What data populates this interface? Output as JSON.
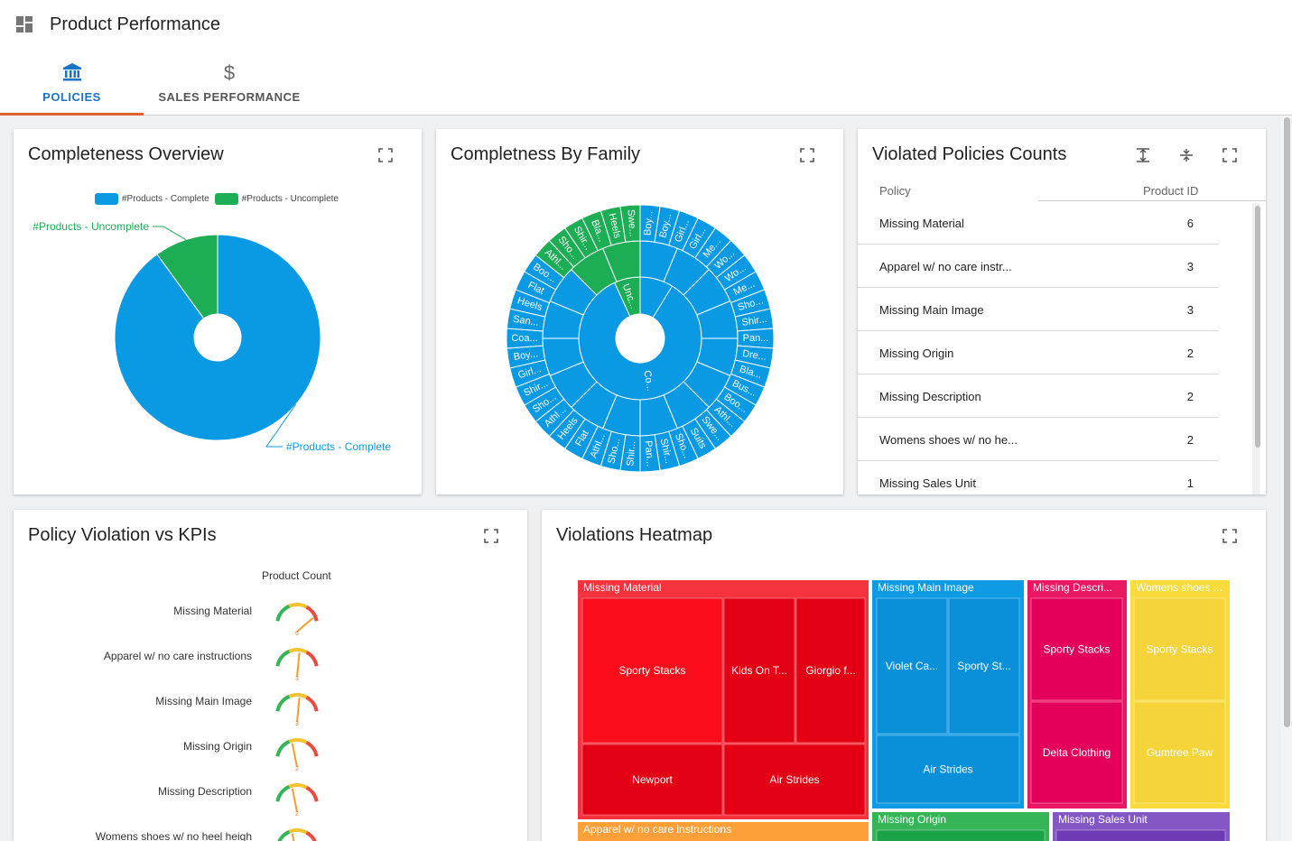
{
  "app": {
    "title": "Product Performance",
    "icon": "dashboard-icon"
  },
  "tabs": [
    {
      "label": "POLICIES",
      "icon": "bank-icon",
      "active": true
    },
    {
      "label": "SALES PERFORMANCE",
      "icon": "dollar-icon",
      "active": false
    }
  ],
  "completeness": {
    "title": "Completeness Overview",
    "chart_data": {
      "type": "pie",
      "labels": [
        "#Products - Complete",
        "#Products - Uncomplete"
      ],
      "values": [
        90,
        10
      ],
      "colors": [
        "#0a9ae3",
        "#1cad55"
      ],
      "legend_position": "top"
    }
  },
  "family": {
    "title": "Completness By Family",
    "inner_labels": [
      "Unc...",
      "Co..."
    ],
    "outer_labels": [
      "Boy...",
      "Boy...",
      "Girl...",
      "Girl...",
      "Me...",
      "Wo...",
      "Wo...",
      "Me...",
      "Sho...",
      "Shir...",
      "Pan...",
      "Dre...",
      "Bla...",
      "Bus...",
      "Boo...",
      "Athl...",
      "Swe...",
      "Suits",
      "Sho...",
      "Shir...",
      "Pan...",
      "Shir...",
      "Sho...",
      "Athl...",
      "Flat",
      "Heels",
      "Athl...",
      "Sho...",
      "Shir...",
      "Girl...",
      "Boy...",
      "Coa...",
      "San...",
      "Heels",
      "Flat",
      "Boo...",
      "Athl...",
      "Sho...",
      "Shir...",
      "Bla...",
      "Heels",
      "Swe..."
    ],
    "colors": {
      "complete": "#0a9ae3",
      "uncomplete": "#1cad55"
    }
  },
  "violated": {
    "title": "Violated Policies Counts",
    "columns": [
      "Policy",
      "Product ID"
    ],
    "rows": [
      {
        "policy": "Missing Material",
        "count": "6"
      },
      {
        "policy": "Apparel w/ no care instr...",
        "count": "3"
      },
      {
        "policy": "Missing Main Image",
        "count": "3"
      },
      {
        "policy": "Missing Origin",
        "count": "2"
      },
      {
        "policy": "Missing Description",
        "count": "2"
      },
      {
        "policy": "Womens shoes w/ no he...",
        "count": "2"
      },
      {
        "policy": "Missing Sales Unit",
        "count": "1"
      }
    ]
  },
  "kpis": {
    "title": "Policy Violation vs KPIs",
    "header": "Product Count",
    "rows": [
      {
        "label": "Missing Material",
        "value": "6",
        "fraction": 0.92
      },
      {
        "label": "Apparel w/ no care instructions",
        "value": "3",
        "fraction": 0.55
      },
      {
        "label": "Missing Main Image",
        "value": "3",
        "fraction": 0.55
      },
      {
        "label": "Missing Origin",
        "value": "2",
        "fraction": 0.4
      },
      {
        "label": "Missing Description",
        "value": "2",
        "fraction": 0.4
      },
      {
        "label": "Womens shoes w/ no heel heigh",
        "value": "",
        "fraction": 0.4
      }
    ]
  },
  "heatmap": {
    "title": "Violations Heatmap",
    "groups": [
      {
        "label": "Missing Material",
        "color": "#f5333f",
        "cells": [
          "Sporty Stacks",
          "Kids On T...",
          "Giorgio f...",
          "Newport",
          "Air Strides"
        ]
      },
      {
        "label": "Missing Main Image",
        "color": "#0f9be3",
        "cells": [
          "Violet Ca...",
          "Sporty St...",
          "Air Strides"
        ]
      },
      {
        "label": "Missing Descri...",
        "color": "#ea1763",
        "cells": [
          "Sporty Stacks",
          "Delta Clothing"
        ]
      },
      {
        "label": "Womens shoes ...",
        "color": "#f9dc3c",
        "cells": [
          "Sporty Stacks",
          "Gumtree Paw"
        ]
      },
      {
        "label": "Apparel w/ no care instructions",
        "color": "#fda03a",
        "cells": []
      },
      {
        "label": "Missing Origin",
        "color": "#35b558",
        "cells": []
      },
      {
        "label": "Missing Sales Unit",
        "color": "#8458c4",
        "cells": []
      }
    ]
  }
}
